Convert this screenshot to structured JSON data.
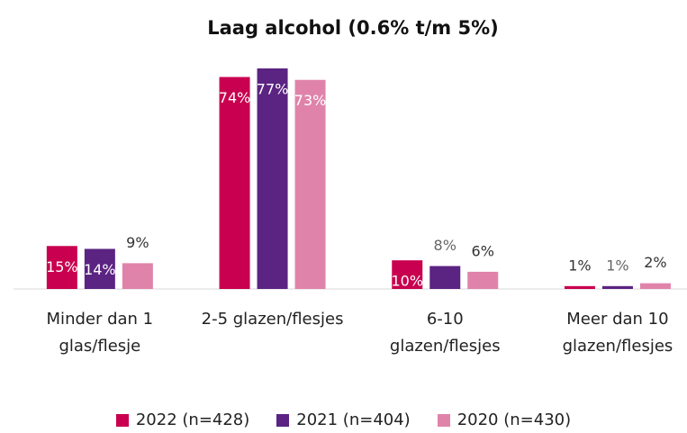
{
  "chart_data": {
    "type": "bar",
    "title": "Laag alcohol (0.6% t/m 5%)",
    "categories": [
      "Minder dan 1 glas/flesje",
      "2-5 glazen/flesjes",
      "6-10 glazen/flesjes",
      "Meer dan 10 glazen/flesjes"
    ],
    "series": [
      {
        "name": "2022 (n=428)",
        "color": "#c8004f",
        "values": [
          15,
          74,
          10,
          1
        ],
        "value_labels": [
          "15%",
          "74%",
          "10%",
          "1%"
        ]
      },
      {
        "name": "2021 (n=404)",
        "color": "#5b2382",
        "values": [
          14,
          77,
          8,
          1
        ],
        "value_labels": [
          "14%",
          "77%",
          "8%",
          "1%"
        ]
      },
      {
        "name": "2020 (n=430)",
        "color": "#e083ab",
        "values": [
          9,
          73,
          6,
          2
        ],
        "value_labels": [
          "9%",
          "73%",
          "6%",
          "2%"
        ]
      }
    ]
  }
}
